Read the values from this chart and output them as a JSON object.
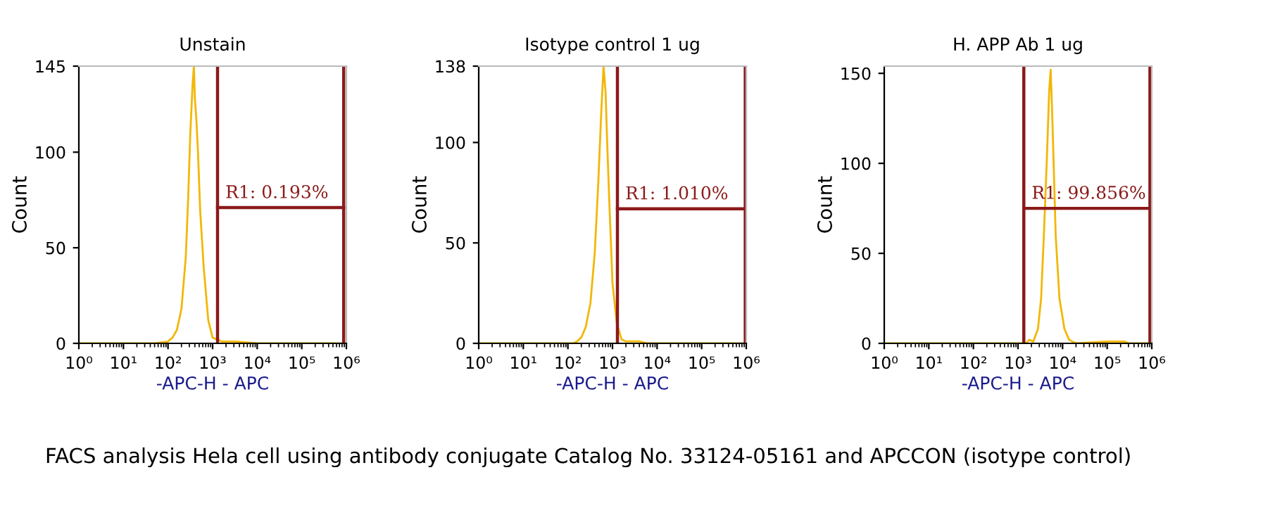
{
  "chart_data": [
    {
      "type": "line",
      "title": "Unstain",
      "xlabel": "-APC-H - APC",
      "ylabel": "Count",
      "log": "x",
      "grid": false,
      "marker": "none",
      "xlim": [
        1,
        1000000
      ],
      "ylim": [
        0,
        145
      ],
      "xticks": [
        {
          "value": 1,
          "label": "10⁰"
        },
        {
          "value": 10,
          "label": "10¹"
        },
        {
          "value": 100,
          "label": "10²"
        },
        {
          "value": 1000,
          "label": "10³"
        },
        {
          "value": 10000,
          "label": "10⁴"
        },
        {
          "value": 100000,
          "label": "10⁵"
        },
        {
          "value": 1000000,
          "label": "10⁶"
        }
      ],
      "yticks": [
        0,
        50,
        100,
        145
      ],
      "series": [
        {
          "color": "#f2b705",
          "x": [
            1,
            50,
            100,
            126,
            158,
            200,
            250,
            282,
            316,
            355,
            380,
            400,
            430,
            470,
            525,
            630,
            800,
            1000,
            1260,
            1600,
            3200,
            10000,
            1000000
          ],
          "values": [
            0,
            0,
            1,
            3,
            7,
            18,
            45,
            75,
            110,
            135,
            145,
            128,
            118,
            100,
            70,
            40,
            12,
            3,
            2,
            1,
            1,
            0,
            0
          ]
        },
        {
          "color": "#8b1a1a",
          "x": [
            1290,
            870000
          ],
          "values": [
            71,
            71
          ]
        }
      ],
      "ref_lines": [
        {
          "axis": "x",
          "value": 1290,
          "color": "#8b1a1a"
        },
        {
          "axis": "x",
          "value": 870000,
          "color": "#8b1a1a"
        }
      ],
      "annotations": [
        {
          "text": "R1: 0.193%",
          "y": 71
        },
        "FACS analysis Hela cell using antibody conjugate Catalog No. 33124-05161 and APCCON (isotype control)"
      ]
    },
    {
      "type": "line",
      "title": "Isotype control 1 ug",
      "xlabel": "-APC-H - APC",
      "ylabel": "Count",
      "log": "x",
      "grid": false,
      "marker": "none",
      "xlim": [
        1,
        1000000
      ],
      "ylim": [
        0,
        138
      ],
      "xticks": [
        {
          "value": 1,
          "label": "10⁰"
        },
        {
          "value": 10,
          "label": "10¹"
        },
        {
          "value": 100,
          "label": "10²"
        },
        {
          "value": 1000,
          "label": "10³"
        },
        {
          "value": 10000,
          "label": "10⁴"
        },
        {
          "value": 100000,
          "label": "10⁵"
        },
        {
          "value": 1000000,
          "label": "10⁶"
        }
      ],
      "yticks": [
        0,
        50,
        100,
        138
      ],
      "series": [
        {
          "color": "#f2b705",
          "x": [
            1,
            130,
            160,
            200,
            250,
            320,
            400,
            480,
            560,
            630,
            700,
            760,
            850,
            1000,
            1250,
            1600,
            2000,
            4000,
            6000,
            1000000
          ],
          "values": [
            0,
            0,
            1,
            3,
            8,
            20,
            45,
            80,
            115,
            138,
            125,
            100,
            70,
            30,
            10,
            2,
            1,
            1,
            0,
            0
          ]
        },
        {
          "color": "#8b1a1a",
          "x": [
            1290,
            950000
          ],
          "values": [
            67,
            67
          ]
        }
      ],
      "ref_lines": [
        {
          "axis": "x",
          "value": 1290,
          "color": "#8b1a1a"
        },
        {
          "axis": "x",
          "value": 950000,
          "color": "#8b1a1a"
        }
      ],
      "annotations": [
        {
          "text": "R1: 1.010%",
          "y": 67
        }
      ]
    },
    {
      "type": "line",
      "title": "H. APP Ab 1 ug",
      "xlabel": "-APC-H - APC",
      "ylabel": "Count",
      "log": "x",
      "grid": false,
      "marker": "none",
      "xlim": [
        1,
        1000000
      ],
      "ylim": [
        0,
        154
      ],
      "xticks": [
        {
          "value": 1,
          "label": "10⁰"
        },
        {
          "value": 10,
          "label": "10¹"
        },
        {
          "value": 100,
          "label": "10²"
        },
        {
          "value": 1000,
          "label": "10³"
        },
        {
          "value": 10000,
          "label": "10⁴"
        },
        {
          "value": 100000,
          "label": "10⁵"
        },
        {
          "value": 1000000,
          "label": "10⁶"
        }
      ],
      "yticks": [
        0,
        50,
        100,
        150
      ],
      "series": [
        {
          "color": "#f2b705",
          "x": [
            1,
            1500,
            1800,
            2200,
            2800,
            3300,
            3800,
            4400,
            5000,
            5400,
            5800,
            6300,
            7000,
            8500,
            11000,
            14000,
            20000,
            100000,
            250000,
            300000,
            1000000
          ],
          "values": [
            0,
            0,
            2,
            1,
            8,
            25,
            60,
            100,
            140,
            152,
            130,
            100,
            60,
            25,
            8,
            2,
            0,
            1,
            1,
            0,
            0
          ]
        },
        {
          "color": "#8b1a1a",
          "x": [
            1350,
            910000
          ],
          "values": [
            75,
            75
          ]
        }
      ],
      "ref_lines": [
        {
          "axis": "x",
          "value": 1350,
          "color": "#8b1a1a"
        },
        {
          "axis": "x",
          "value": 910000,
          "color": "#8b1a1a"
        }
      ],
      "annotations": [
        {
          "text": "R1: 99.856%",
          "y": 75
        }
      ]
    }
  ]
}
